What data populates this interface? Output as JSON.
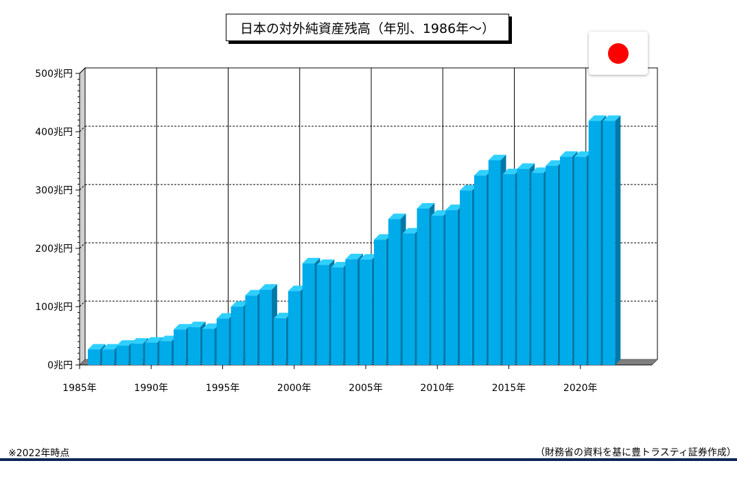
{
  "title": "日本の対外純資産残高（年別、1986年～）",
  "flag_icon": "japan-flag-icon",
  "footnote": "※2022年時点",
  "source": "（財務省の資料を基に豊トラスティ証券作成）",
  "colors": {
    "bar_front": "#00abea",
    "bar_top": "#2fd0ff",
    "bar_side": "#0079a8",
    "floor": "#7f7f7f",
    "bottom_rule": "#0d2557",
    "flag_red": "#ff0000"
  },
  "chart_data": {
    "type": "bar",
    "style": "3d",
    "x": [
      1986,
      1987,
      1988,
      1989,
      1990,
      1991,
      1992,
      1993,
      1994,
      1995,
      1996,
      1997,
      1998,
      1999,
      2000,
      2001,
      2002,
      2003,
      2004,
      2005,
      2006,
      2007,
      2008,
      2009,
      2010,
      2011,
      2012,
      2013,
      2014,
      2015,
      2016,
      2017,
      2018,
      2019,
      2020,
      2021,
      2022
    ],
    "values": [
      26.5,
      26.5,
      33,
      36.6,
      38.2,
      40.8,
      60.8,
      64.9,
      61.8,
      79.4,
      99.9,
      119.2,
      129.1,
      80.1,
      126.6,
      174.2,
      171.5,
      167.4,
      181.3,
      180.7,
      214.9,
      250.2,
      225.5,
      268.2,
      255.9,
      265.7,
      299.3,
      325.0,
      351.1,
      327.2,
      336.3,
      329.3,
      341.6,
      357.0,
      356.9,
      418.6,
      418.6
    ],
    "ylim": [
      0,
      500
    ],
    "y_ticks": [
      0,
      100,
      200,
      300,
      400,
      500
    ],
    "y_tick_labels": [
      "0兆円",
      "100兆円",
      "200兆円",
      "300兆円",
      "400兆円",
      "500兆円"
    ],
    "x_tick_years": [
      1985,
      1990,
      1995,
      2000,
      2005,
      2010,
      2015,
      2020
    ],
    "x_tick_labels": [
      "1985年",
      "1990年",
      "1995年",
      "2000年",
      "2005年",
      "2010年",
      "2015年",
      "2020年"
    ],
    "xlim": [
      1985,
      2025
    ],
    "grid": true,
    "legend": "none"
  }
}
